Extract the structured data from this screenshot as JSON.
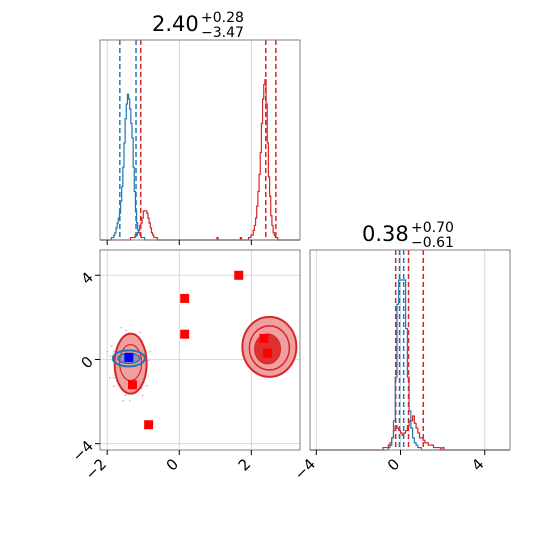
{
  "chart_data": {
    "type": "corner",
    "parameters": [
      {
        "id": "p0",
        "range": [
          -2.2,
          3.35
        ],
        "ticks": [
          -2,
          0,
          2
        ],
        "tick_labels": [
          "−2",
          "0",
          "2"
        ],
        "title": {
          "value": "2.40",
          "upper": "+0.28",
          "lower": "−3.47"
        }
      },
      {
        "id": "p1",
        "range": [
          -4.3,
          5.2
        ],
        "ticks": [
          -4,
          0,
          4
        ],
        "tick_labels": [
          "−4",
          "0",
          "4"
        ],
        "title": {
          "value": "0.38",
          "upper": "+0.70",
          "lower": "−0.61"
        }
      }
    ],
    "grid": true,
    "colors": {
      "red": "#d62728",
      "blue": "#1f77b4",
      "red_fill_light": "#f0a0a0",
      "red_fill_dark": "#e03030"
    },
    "series": [
      {
        "color": "red",
        "quantiles_p0": [
          -1.07,
          2.4,
          2.68
        ],
        "quantiles_p1": [
          -0.23,
          0.38,
          1.08
        ],
        "hist_p0": {
          "x0": -2.2,
          "x1": 3.35,
          "counts": [
            0,
            0,
            0,
            0,
            0,
            0,
            0,
            0,
            0,
            0,
            0,
            0,
            0,
            0,
            0,
            0,
            0,
            0,
            0,
            0,
            0,
            0,
            0,
            0,
            0,
            0,
            1,
            1,
            1,
            1,
            2,
            2,
            3,
            4,
            6,
            7,
            9,
            12,
            12,
            12,
            11,
            9,
            7,
            5,
            3,
            2,
            1,
            1,
            1,
            0,
            0,
            0,
            0,
            0,
            0,
            0,
            0,
            0,
            0,
            0,
            0,
            0,
            0,
            0,
            0,
            0,
            0,
            0,
            0,
            0,
            0,
            0,
            0,
            0,
            0,
            0,
            0,
            0,
            0,
            0,
            0,
            0,
            0,
            0,
            0,
            0,
            0,
            0,
            0,
            0,
            0,
            0,
            0,
            0,
            0,
            0,
            0,
            0,
            0,
            0,
            1,
            0,
            0,
            0,
            0,
            0,
            0,
            0,
            0,
            0,
            0,
            0,
            0,
            0,
            0,
            0,
            0,
            0,
            0,
            0,
            1,
            0,
            0,
            0,
            0,
            0,
            0,
            1,
            1,
            2,
            2,
            4,
            6,
            9,
            14,
            20,
            27,
            36,
            48,
            58,
            64,
            66,
            56,
            40,
            26,
            18,
            10,
            6,
            3,
            2,
            1,
            1,
            0,
            0,
            0,
            0,
            0,
            0,
            0,
            0,
            0,
            0,
            0,
            0,
            0,
            0,
            0,
            0,
            0,
            0,
            0
          ]
        },
        "hist_p1": {
          "x0": -4.3,
          "x1": 5.2,
          "counts": [
            0,
            0,
            0,
            0,
            0,
            0,
            0,
            0,
            0,
            0,
            0,
            0,
            0,
            0,
            0,
            0,
            0,
            0,
            0,
            0,
            0,
            0,
            0,
            0,
            0,
            0,
            0,
            0,
            0,
            0,
            0,
            0,
            0,
            0,
            0,
            0,
            0,
            0,
            0,
            0,
            0,
            0,
            1,
            1,
            1,
            2,
            3,
            5,
            8,
            10,
            9,
            8,
            7,
            6,
            7,
            8,
            10,
            12,
            12,
            14,
            11,
            9,
            7,
            5,
            5,
            4,
            3,
            3,
            2,
            2,
            2,
            1,
            1,
            1,
            1,
            0,
            1,
            0,
            0,
            0,
            0,
            0,
            0,
            0,
            0,
            0,
            0,
            0,
            0,
            0,
            0,
            0,
            0,
            0,
            0,
            0,
            0,
            0,
            0,
            0,
            0,
            0,
            0,
            0,
            0,
            0,
            0,
            0,
            0,
            0,
            0,
            0,
            0,
            0,
            0
          ]
        },
        "markers": [
          [
            -1.3,
            -1.2
          ],
          [
            -0.85,
            -3.1
          ],
          [
            0.15,
            2.9
          ],
          [
            0.15,
            1.2
          ],
          [
            1.65,
            4.0
          ],
          [
            2.35,
            1.0
          ],
          [
            2.45,
            0.3
          ]
        ]
      },
      {
        "color": "blue",
        "quantiles_p0": [
          -1.65,
          -1.2
        ],
        "quantiles_p1": [
          -0.05,
          0.15
        ],
        "hist_p0": {
          "x0": -2.2,
          "x1": 3.35,
          "counts": [
            0,
            0,
            0,
            0,
            0,
            0,
            0,
            0,
            0,
            0,
            1,
            1,
            2,
            3,
            5,
            7,
            9,
            11,
            16,
            22,
            30,
            40,
            50,
            56,
            60,
            58,
            54,
            48,
            42,
            30,
            20,
            12,
            7,
            4,
            3,
            2,
            1,
            1,
            1,
            0,
            0,
            0,
            0,
            0,
            0,
            0,
            0,
            0,
            0,
            0,
            0,
            0,
            0,
            0,
            0,
            0,
            0,
            0,
            0,
            0,
            0,
            0,
            0,
            0,
            0,
            0,
            0,
            0,
            0,
            0,
            0,
            0,
            0,
            0,
            0,
            0,
            0,
            0,
            0,
            0,
            0,
            0,
            0,
            0,
            0,
            0,
            0,
            0,
            0,
            0,
            0,
            0,
            0,
            0,
            0,
            0,
            0,
            0,
            0,
            0,
            0,
            0,
            0,
            0,
            0,
            0,
            0,
            0,
            0,
            0,
            0,
            0,
            0,
            0,
            0,
            0,
            0,
            0,
            0,
            0,
            0,
            0,
            0,
            0,
            0,
            0,
            0,
            0,
            0,
            0,
            0,
            0,
            0,
            0,
            0,
            0,
            0,
            0,
            0,
            0,
            0,
            0,
            0,
            0,
            0,
            0,
            0,
            0,
            0,
            0,
            0,
            0,
            0,
            0,
            0,
            0,
            0,
            0,
            0,
            0,
            0,
            0,
            0,
            0,
            0,
            0,
            0,
            0,
            0,
            0,
            0,
            0,
            0,
            0,
            0
          ]
        },
        "hist_p1": {
          "x0": -4.3,
          "x1": 5.2,
          "counts": [
            0,
            0,
            0,
            0,
            0,
            0,
            0,
            0,
            0,
            0,
            0,
            0,
            0,
            0,
            0,
            0,
            0,
            0,
            0,
            0,
            0,
            0,
            0,
            0,
            0,
            0,
            0,
            0,
            0,
            0,
            0,
            0,
            0,
            0,
            0,
            0,
            0,
            0,
            0,
            0,
            0,
            0,
            0,
            0,
            0,
            1,
            2,
            5,
            12,
            30,
            60,
            90,
            96,
            88,
            70,
            50,
            30,
            16,
            9,
            5,
            3,
            2,
            1,
            1,
            0,
            0,
            0,
            0,
            0,
            0,
            0,
            0,
            0,
            0,
            0,
            0,
            0,
            0,
            0,
            0,
            0,
            0,
            0,
            0,
            0,
            0,
            0,
            0,
            0,
            0,
            0,
            0,
            0,
            0,
            0,
            0,
            0,
            0,
            0,
            0,
            0,
            0,
            0,
            0,
            0,
            0,
            0,
            0,
            0,
            0,
            0,
            0,
            0,
            0,
            0
          ]
        },
        "markers": [
          [
            -1.4,
            0.1
          ]
        ]
      }
    ]
  }
}
